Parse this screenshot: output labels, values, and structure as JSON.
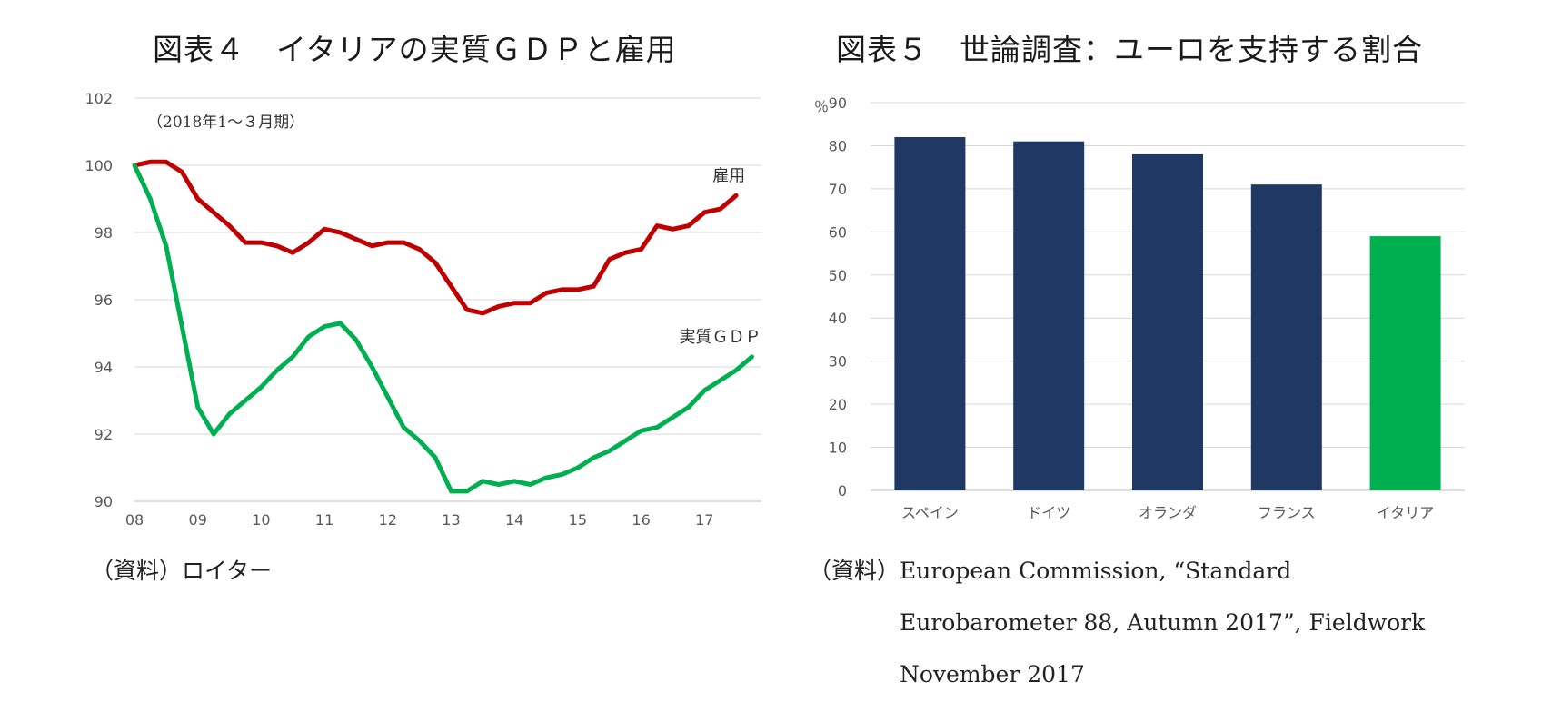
{
  "chart_data": [
    {
      "type": "line",
      "title": "図表４　イタリアの実質ＧＤＰと雇用",
      "note": "（2018年1～３月期）",
      "x_tick_labels": [
        "08",
        "09",
        "10",
        "11",
        "12",
        "13",
        "14",
        "15",
        "16",
        "17"
      ],
      "y_tick_labels": [
        "90",
        "92",
        "94",
        "96",
        "98",
        "100",
        "102"
      ],
      "ylim": [
        90,
        102
      ],
      "xlim": [
        2008.0,
        2017.9
      ],
      "grid": true,
      "legend": "direct labels at line ends",
      "series": [
        {
          "name": "雇用",
          "color": "#c00000",
          "x": [
            2008.0,
            2008.25,
            2008.5,
            2008.75,
            2009.0,
            2009.25,
            2009.5,
            2009.75,
            2010.0,
            2010.25,
            2010.5,
            2010.75,
            2011.0,
            2011.25,
            2011.5,
            2011.75,
            2012.0,
            2012.25,
            2012.5,
            2012.75,
            2013.0,
            2013.25,
            2013.5,
            2013.75,
            2014.0,
            2014.25,
            2014.5,
            2014.75,
            2015.0,
            2015.25,
            2015.5,
            2015.75,
            2016.0,
            2016.25,
            2016.5,
            2016.75,
            2017.0,
            2017.25,
            2017.5
          ],
          "y": [
            100.0,
            100.1,
            100.1,
            99.8,
            99.0,
            98.6,
            98.2,
            97.7,
            97.7,
            97.6,
            97.4,
            97.7,
            98.1,
            98.0,
            97.8,
            97.6,
            97.7,
            97.7,
            97.5,
            97.1,
            96.4,
            95.7,
            95.6,
            95.8,
            95.9,
            95.9,
            96.2,
            96.3,
            96.3,
            96.4,
            97.2,
            97.4,
            97.5,
            98.2,
            98.1,
            98.2,
            98.6,
            98.7,
            99.1
          ]
        },
        {
          "name": "実質ＧＤＰ",
          "color": "#00b050",
          "x": [
            2008.0,
            2008.25,
            2008.5,
            2008.75,
            2009.0,
            2009.25,
            2009.5,
            2009.75,
            2010.0,
            2010.25,
            2010.5,
            2010.75,
            2011.0,
            2011.25,
            2011.5,
            2011.75,
            2012.0,
            2012.25,
            2012.5,
            2012.75,
            2013.0,
            2013.25,
            2013.5,
            2013.75,
            2014.0,
            2014.25,
            2014.5,
            2014.75,
            2015.0,
            2015.25,
            2015.5,
            2015.75,
            2016.0,
            2016.25,
            2016.5,
            2016.75,
            2017.0,
            2017.25,
            2017.5,
            2017.75
          ],
          "y": [
            100.0,
            99.0,
            97.6,
            95.2,
            92.8,
            92.0,
            92.6,
            93.0,
            93.4,
            93.9,
            94.3,
            94.9,
            95.2,
            95.3,
            94.8,
            94.0,
            93.1,
            92.2,
            91.8,
            91.3,
            90.3,
            90.3,
            90.6,
            90.5,
            90.6,
            90.5,
            90.7,
            90.8,
            91.0,
            91.3,
            91.5,
            91.8,
            92.1,
            92.2,
            92.5,
            92.8,
            93.3,
            93.6,
            93.9,
            94.3
          ]
        }
      ]
    },
    {
      "type": "bar",
      "title": "図表５　世論調査：ユーロを支持する割合",
      "ylabel": "％",
      "categories": [
        "スペイン",
        "ドイツ",
        "オランダ",
        "フランス",
        "イタリア"
      ],
      "values": [
        82,
        81,
        78,
        71,
        59
      ],
      "colors": [
        "#203864",
        "#203864",
        "#203864",
        "#203864",
        "#00b050"
      ],
      "ylim": [
        0,
        90
      ],
      "y_tick_labels": [
        "0",
        "10",
        "20",
        "30",
        "40",
        "50",
        "60",
        "70",
        "80",
        "90"
      ],
      "grid": true
    }
  ],
  "sources": {
    "left": "（資料）ロイター",
    "right_prefix": "（資料）",
    "right_body_lines": [
      "European Commission, “Standard",
      "Eurobarometer 88, Autumn 2017”, Fieldwork",
      "November 2017"
    ]
  }
}
